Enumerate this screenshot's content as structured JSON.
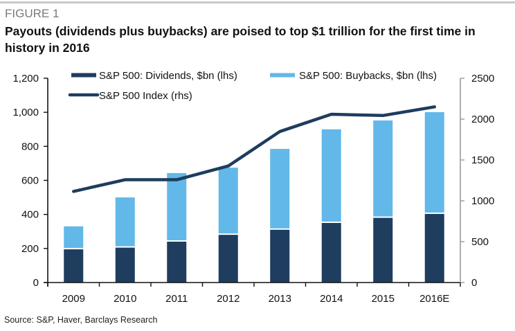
{
  "header": {
    "figure_label": "FIGURE 1",
    "title": "Payouts (dividends plus buybacks) are poised to top $1 trillion for the first time in history in 2016"
  },
  "footer": {
    "source": "Source: S&P, Haver, Barclays Research"
  },
  "colors": {
    "dividends": "#1e3d5f",
    "buybacks": "#62b8e8",
    "index_line": "#1e3d5f",
    "left_axis": "#111111",
    "right_axis": "#9a9a9a"
  },
  "chart_data": {
    "type": "bar",
    "subtype": "stacked bar with line on secondary axis",
    "title": "Payouts (dividends plus buybacks) are poised to top $1 trillion for the first time in history in 2016",
    "categories": [
      "2009",
      "2010",
      "2011",
      "2012",
      "2013",
      "2014",
      "2015",
      "2016E"
    ],
    "series": [
      {
        "name": "S&P 500: Dividends, $bn (lhs)",
        "type": "bar",
        "axis": "left",
        "stack": "payouts",
        "values": [
          195,
          205,
          240,
          280,
          310,
          350,
          380,
          403
        ]
      },
      {
        "name": "S&P 500: Buybacks, $bn (lhs)",
        "type": "bar",
        "axis": "left",
        "stack": "payouts",
        "values": [
          135,
          295,
          403,
          395,
          475,
          550,
          572,
          598
        ]
      },
      {
        "name": "S&P 500 Index (rhs)",
        "type": "line",
        "axis": "right",
        "values": [
          1115,
          1258,
          1258,
          1426,
          1848,
          2059,
          2044,
          2150
        ]
      }
    ],
    "left_axis": {
      "ylim": [
        0,
        1200
      ],
      "ticks": [
        0,
        200,
        400,
        600,
        800,
        1000,
        1200
      ],
      "tick_labels": [
        "0",
        "200",
        "400",
        "600",
        "800",
        "1,000",
        "1,200"
      ]
    },
    "right_axis": {
      "ylim": [
        0,
        2500
      ],
      "ticks": [
        0,
        500,
        1000,
        1500,
        2000,
        2500
      ],
      "tick_labels": [
        "0",
        "500",
        "1000",
        "1500",
        "2000",
        "2500"
      ]
    },
    "xlabel": "",
    "ylabel": "",
    "grid": false,
    "legend": {
      "placement": "top",
      "entries": [
        {
          "label": "S&P 500: Dividends, $bn (lhs)",
          "symbol": "bar",
          "series": 0
        },
        {
          "label": "S&P 500: Buybacks, $bn (lhs)",
          "symbol": "bar",
          "series": 1
        },
        {
          "label": "S&P 500 Index (rhs)",
          "symbol": "line",
          "series": 2
        }
      ]
    }
  }
}
